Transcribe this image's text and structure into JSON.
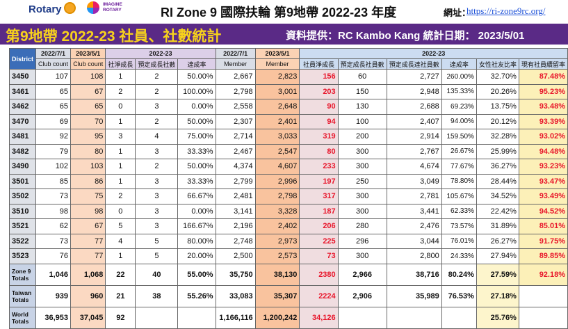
{
  "header": {
    "rotary": "Rotary",
    "imagine_line1": "IMAGINE",
    "imagine_line2": "ROTARY",
    "title": "RI Zone 9 國際扶輪 第9地帶 2022-23 年度",
    "url_label": "網址：",
    "url": "https://ri-zone9rc.org/"
  },
  "banner": {
    "title": "第9地帶 2022-23 社員、社數統計",
    "info": "資料提供：RC Kambo Kang 統計日期： 2023/5/01"
  },
  "table": {
    "h_district": "District",
    "h1": [
      "2022/7/1",
      "2023/5/1",
      "2022-23",
      "2022/7/1",
      "2023/5/1",
      "2022-23"
    ],
    "h2": [
      "Club count",
      "Club count",
      "社淨成長",
      "預定成長社數",
      "達成率",
      "Member",
      "Member",
      "社員淨成長",
      "預定成長社員數",
      "預定成長達社員數",
      "達成率",
      "女性社友比率",
      "現有社員續留率"
    ],
    "rows": [
      [
        "3450",
        "107",
        "108",
        "1",
        "2",
        "50.00%",
        "2,667",
        "2,823",
        "156",
        "60",
        "2,727",
        "260.00%",
        "32.70%",
        "87.48%"
      ],
      [
        "3461",
        "65",
        "67",
        "2",
        "2",
        "100.00%",
        "2,798",
        "3,001",
        "203",
        "150",
        "2,948",
        "135.33%",
        "20.26%",
        "95.23%"
      ],
      [
        "3462",
        "65",
        "65",
        "0",
        "3",
        "0.00%",
        "2,558",
        "2,648",
        "90",
        "130",
        "2,688",
        "69.23%",
        "13.75%",
        "93.48%"
      ],
      [
        "3470",
        "69",
        "70",
        "1",
        "2",
        "50.00%",
        "2,307",
        "2,401",
        "94",
        "100",
        "2,407",
        "94.00%",
        "20.12%",
        "93.39%"
      ],
      [
        "3481",
        "92",
        "95",
        "3",
        "4",
        "75.00%",
        "2,714",
        "3,033",
        "319",
        "200",
        "2,914",
        "159.50%",
        "32.28%",
        "93.02%"
      ],
      [
        "3482",
        "79",
        "80",
        "1",
        "3",
        "33.33%",
        "2,467",
        "2,547",
        "80",
        "300",
        "2,767",
        "26.67%",
        "25.99%",
        "94.48%"
      ],
      [
        "3490",
        "102",
        "103",
        "1",
        "2",
        "50.00%",
        "4,374",
        "4,607",
        "233",
        "300",
        "4,674",
        "77.67%",
        "36.27%",
        "93.23%"
      ],
      [
        "3501",
        "85",
        "86",
        "1",
        "3",
        "33.33%",
        "2,799",
        "2,996",
        "197",
        "250",
        "3,049",
        "78.80%",
        "28.44%",
        "93.47%"
      ],
      [
        "3502",
        "73",
        "75",
        "2",
        "3",
        "66.67%",
        "2,481",
        "2,798",
        "317",
        "300",
        "2,781",
        "105.67%",
        "34.52%",
        "93.49%"
      ],
      [
        "3510",
        "98",
        "98",
        "0",
        "3",
        "0.00%",
        "3,141",
        "3,328",
        "187",
        "300",
        "3,441",
        "62.33%",
        "22.42%",
        "94.52%"
      ],
      [
        "3521",
        "62",
        "67",
        "5",
        "3",
        "166.67%",
        "2,196",
        "2,402",
        "206",
        "280",
        "2,476",
        "73.57%",
        "31.89%",
        "85.01%"
      ],
      [
        "3522",
        "73",
        "77",
        "4",
        "5",
        "80.00%",
        "2,748",
        "2,973",
        "225",
        "296",
        "3,044",
        "76.01%",
        "26.27%",
        "91.75%"
      ],
      [
        "3523",
        "76",
        "77",
        "1",
        "5",
        "20.00%",
        "2,500",
        "2,573",
        "73",
        "300",
        "2,800",
        "24.33%",
        "27.94%",
        "89.85%"
      ]
    ],
    "totals": [
      {
        "label": "Zone 9 Totals",
        "cells": [
          "1,046",
          "1,068",
          "22",
          "40",
          "55.00%",
          "35,750",
          "38,130",
          "2380",
          "2,966",
          "38,716",
          "80.24%",
          "27.59%",
          "92.18%"
        ]
      },
      {
        "label": "Taiwan Totals",
        "cells": [
          "939",
          "960",
          "21",
          "38",
          "55.26%",
          "33,083",
          "35,307",
          "2224",
          "2,906",
          "35,989",
          "76.53%",
          "27.18%",
          ""
        ]
      },
      {
        "label": "World Totals",
        "cells": [
          "36,953",
          "37,045",
          "92",
          "",
          "",
          "1,166,116",
          "1,200,242",
          "34,126",
          "",
          "",
          "",
          "25.76%",
          ""
        ]
      }
    ]
  },
  "colors": {
    "banner_purple": "#5a2a86",
    "banner_title_yellow": "#f7d21c",
    "district_blue": "#3b6db8",
    "highlight_red": "#e8152a",
    "url_blue": "#1a4fd8"
  }
}
